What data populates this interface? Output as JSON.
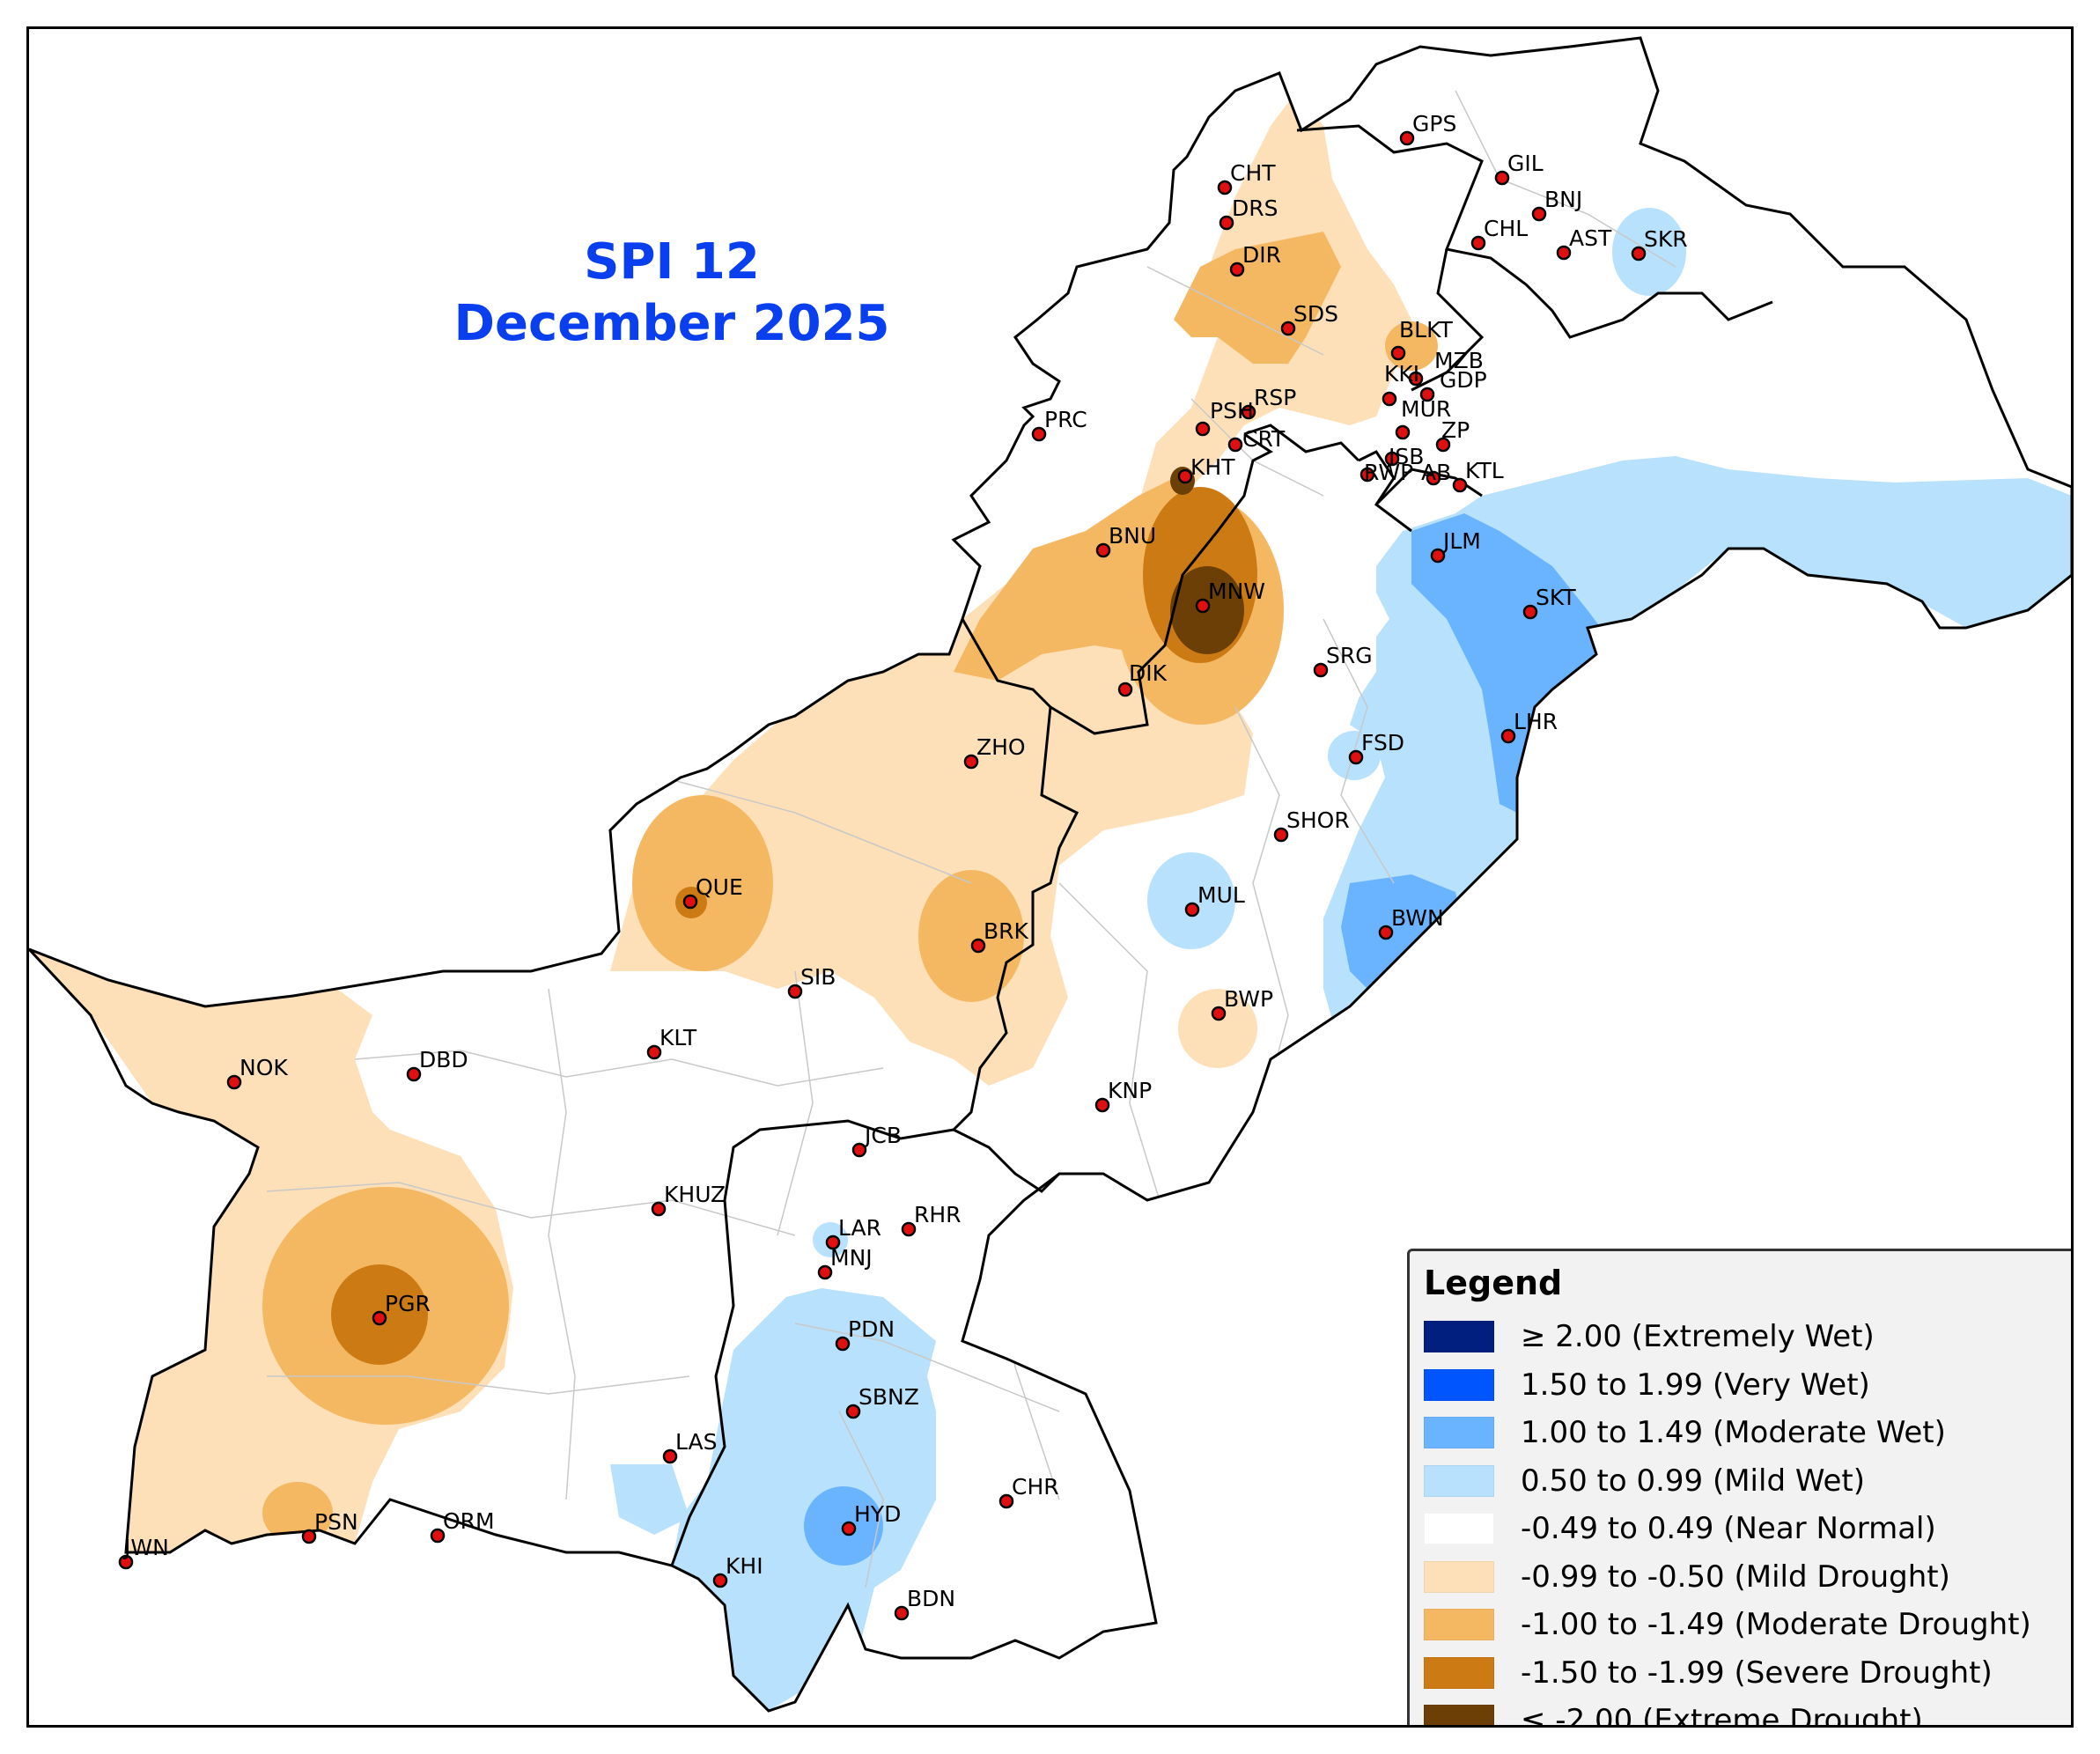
{
  "title": {
    "line1": "SPI 12",
    "line2": "December 2025"
  },
  "legend": {
    "title": "Legend",
    "items": [
      {
        "label": "≥ 2.00 (Extremely Wet)",
        "color": "#001f7f"
      },
      {
        "label": "1.50 to 1.99 (Very Wet)",
        "color": "#0055ff"
      },
      {
        "label": "1.00 to 1.49 (Moderate Wet)",
        "color": "#6ab4ff"
      },
      {
        "label": "0.50 to 0.99 (Mild Wet)",
        "color": "#b8e1fd"
      },
      {
        "label": "-0.49 to 0.49 (Near Normal)",
        "color": "#ffffff"
      },
      {
        "label": "-0.99 to -0.50 (Mild Drought)",
        "color": "#fde0b8"
      },
      {
        "label": "-1.00 to -1.49 (Moderate Drought)",
        "color": "#f5b862"
      },
      {
        "label": "-1.50 to -1.99 (Severe Drought)",
        "color": "#cc7a14"
      },
      {
        "label": "≤ -2.00 (Extreme Drought)",
        "color": "#6b3f05"
      }
    ]
  },
  "stations": [
    "GPS",
    "GIL",
    "CHT",
    "BNJ",
    "DRS",
    "CHL",
    "AST",
    "SKR",
    "DIR",
    "SDS",
    "BLKT",
    "MZB",
    "KKI",
    "GDP",
    "RSP",
    "MUR",
    "PRC",
    "PSH",
    "CRT",
    "ISB",
    "ZP",
    "KHT",
    "RWP",
    "AB",
    "KTL",
    "BNU",
    "JLM",
    "MNW",
    "SKT",
    "SRG",
    "DIK",
    "LHR",
    "FSD",
    "ZHO",
    "SHOR",
    "QUE",
    "MUL",
    "BWN",
    "BRK",
    "SIB",
    "BWP",
    "KLT",
    "NOK",
    "DBD",
    "KNP",
    "JCB",
    "KHUZ",
    "LAR",
    "RHR",
    "MNJ",
    "PGR",
    "PDN",
    "SBNZ",
    "LAS",
    "CHR",
    "HYD",
    "PSN",
    "ORM",
    "JWN",
    "KHI",
    "BDN"
  ]
}
